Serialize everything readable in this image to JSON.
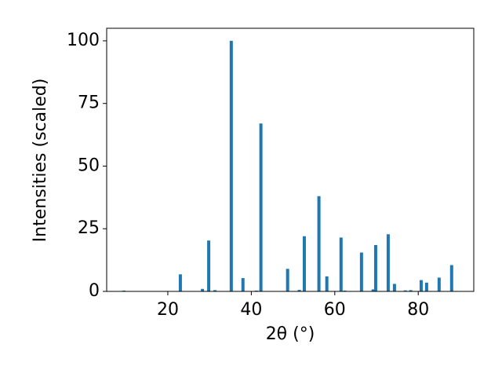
{
  "chart_data": {
    "type": "bar",
    "x": [
      9.5,
      23.0,
      28.3,
      29.8,
      31.3,
      35.2,
      38.0,
      41.2,
      42.3,
      48.7,
      51.5,
      52.7,
      56.2,
      58.1,
      61.5,
      62.4,
      66.4,
      69.2,
      69.8,
      72.8,
      74.3,
      76.9,
      78.2,
      80.7,
      82.0,
      85.0,
      88.0
    ],
    "values": [
      0.3,
      6.8,
      1.0,
      20.3,
      0.5,
      100,
      5.3,
      0.3,
      67,
      9,
      0.6,
      22,
      38,
      6,
      21.5,
      0.3,
      15.5,
      0.8,
      18.5,
      22.8,
      3,
      0.4,
      0.5,
      4.5,
      3.5,
      5.5,
      10.5
    ],
    "color": "#1f77b4",
    "xlabel": "2θ (°)",
    "ylabel": "Intensities (scaled)",
    "xlim": [
      5.35,
      93.3
    ],
    "ylim": [
      0,
      105
    ],
    "xticks": [
      20,
      40,
      60,
      80
    ],
    "yticks": [
      0,
      25,
      50,
      75,
      100
    ],
    "grid": false
  }
}
